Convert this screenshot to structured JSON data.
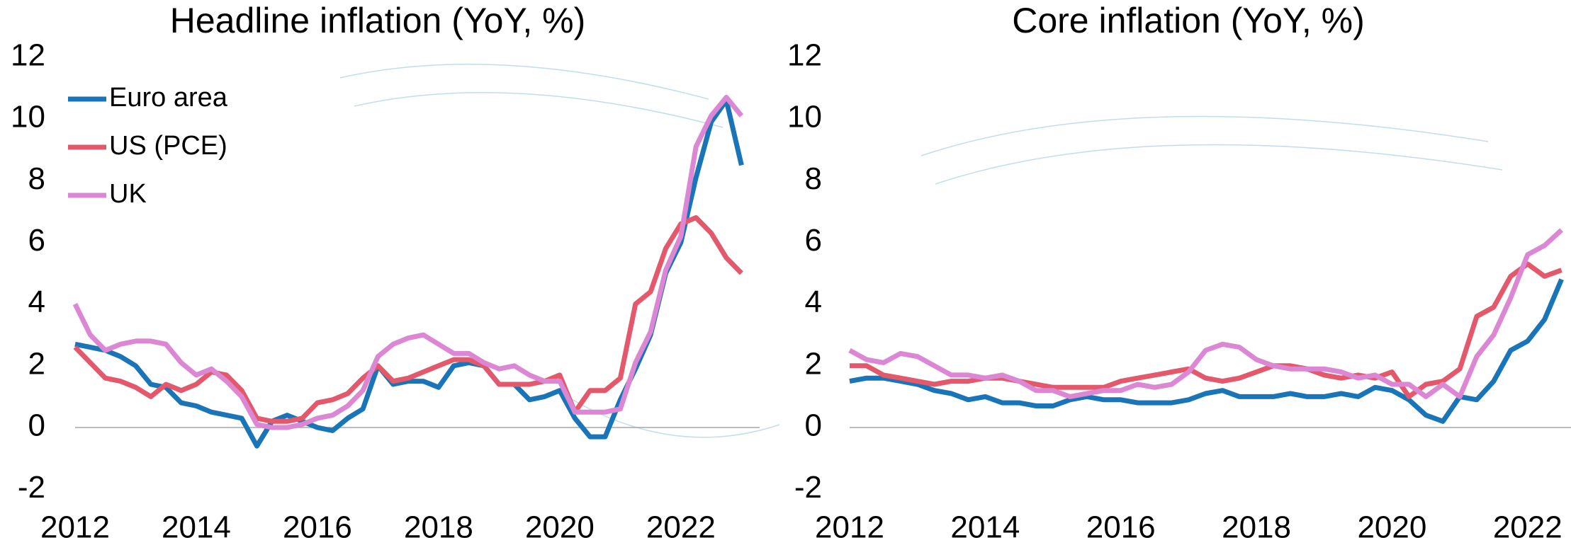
{
  "chart_data": [
    {
      "type": "line",
      "title": "Headline inflation (YoY, %)",
      "x": [
        2012,
        2012.25,
        2012.5,
        2012.75,
        2013,
        2013.25,
        2013.5,
        2013.75,
        2014,
        2014.25,
        2014.5,
        2014.75,
        2015,
        2015.25,
        2015.5,
        2015.75,
        2016,
        2016.25,
        2016.5,
        2016.75,
        2017,
        2017.25,
        2017.5,
        2017.75,
        2018,
        2018.25,
        2018.5,
        2018.75,
        2019,
        2019.25,
        2019.5,
        2019.75,
        2020,
        2020.25,
        2020.5,
        2020.75,
        2021,
        2021.25,
        2021.5,
        2021.75,
        2022,
        2022.25,
        2022.5,
        2022.75,
        2023
      ],
      "series": [
        {
          "name": "Euro area",
          "color": "#1a75b8",
          "values": [
            2.7,
            2.6,
            2.5,
            2.3,
            2.0,
            1.4,
            1.3,
            0.8,
            0.7,
            0.5,
            0.4,
            0.3,
            -0.6,
            0.2,
            0.4,
            0.2,
            0.0,
            -0.1,
            0.3,
            0.6,
            2.0,
            1.4,
            1.5,
            1.5,
            1.3,
            2.0,
            2.1,
            2.0,
            1.4,
            1.4,
            0.9,
            1.0,
            1.2,
            0.3,
            -0.3,
            -0.3,
            0.9,
            1.9,
            3.0,
            5.0,
            6.0,
            8.1,
            9.9,
            10.6,
            8.5
          ]
        },
        {
          "name": "US (PCE)",
          "color": "#e3596b",
          "values": [
            2.6,
            2.1,
            1.6,
            1.5,
            1.3,
            1.0,
            1.4,
            1.2,
            1.4,
            1.8,
            1.7,
            1.2,
            0.3,
            0.2,
            0.2,
            0.3,
            0.8,
            0.9,
            1.1,
            1.6,
            2.0,
            1.5,
            1.6,
            1.8,
            2.0,
            2.2,
            2.2,
            2.0,
            1.4,
            1.4,
            1.4,
            1.5,
            1.7,
            0.5,
            1.2,
            1.2,
            1.6,
            4.0,
            4.4,
            5.8,
            6.6,
            6.8,
            6.3,
            5.5,
            5.0
          ]
        },
        {
          "name": "UK",
          "color": "#dc87d3",
          "values": [
            4.0,
            3.0,
            2.5,
            2.7,
            2.8,
            2.8,
            2.7,
            2.1,
            1.7,
            1.9,
            1.5,
            1.0,
            0.1,
            0.0,
            0.0,
            0.1,
            0.3,
            0.4,
            0.7,
            1.2,
            2.3,
            2.7,
            2.9,
            3.0,
            2.7,
            2.4,
            2.4,
            2.1,
            1.9,
            2.0,
            1.7,
            1.5,
            1.5,
            0.5,
            0.5,
            0.5,
            0.6,
            2.1,
            3.1,
            5.1,
            6.2,
            9.1,
            10.1,
            10.7,
            10.1
          ]
        }
      ],
      "xlim": [
        2012,
        2023.3
      ],
      "xticks": [
        2012,
        2014,
        2016,
        2018,
        2020,
        2022
      ],
      "ylim": [
        -2.5,
        12.5
      ],
      "yticks": [
        -2,
        0,
        2,
        4,
        6,
        8,
        10,
        12
      ],
      "legend": "upper left"
    },
    {
      "type": "line",
      "title": "Core inflation (YoY, %)",
      "x": [
        2012,
        2012.25,
        2012.5,
        2012.75,
        2013,
        2013.25,
        2013.5,
        2013.75,
        2014,
        2014.25,
        2014.5,
        2014.75,
        2015,
        2015.25,
        2015.5,
        2015.75,
        2016,
        2016.25,
        2016.5,
        2016.75,
        2017,
        2017.25,
        2017.5,
        2017.75,
        2018,
        2018.25,
        2018.5,
        2018.75,
        2019,
        2019.25,
        2019.5,
        2019.75,
        2020,
        2020.25,
        2020.5,
        2020.75,
        2021,
        2021.25,
        2021.5,
        2021.75,
        2022,
        2022.25,
        2022.5
      ],
      "series": [
        {
          "color": "#1a75b8",
          "values": [
            1.5,
            1.6,
            1.6,
            1.5,
            1.4,
            1.2,
            1.1,
            0.9,
            1.0,
            0.8,
            0.8,
            0.7,
            0.7,
            0.9,
            1.0,
            0.9,
            0.9,
            0.8,
            0.8,
            0.8,
            0.9,
            1.1,
            1.2,
            1.0,
            1.0,
            1.0,
            1.1,
            1.0,
            1.0,
            1.1,
            1.0,
            1.3,
            1.2,
            0.9,
            0.4,
            0.2,
            1.0,
            0.9,
            1.5,
            2.5,
            2.8,
            3.5,
            4.8
          ]
        },
        {
          "color": "#e3596b",
          "values": [
            2.0,
            2.0,
            1.7,
            1.6,
            1.5,
            1.4,
            1.5,
            1.5,
            1.6,
            1.6,
            1.5,
            1.4,
            1.3,
            1.3,
            1.3,
            1.3,
            1.5,
            1.6,
            1.7,
            1.8,
            1.9,
            1.6,
            1.5,
            1.6,
            1.8,
            2.0,
            2.0,
            1.9,
            1.7,
            1.6,
            1.7,
            1.6,
            1.8,
            1.0,
            1.4,
            1.5,
            1.9,
            3.6,
            3.9,
            4.9,
            5.3,
            4.9,
            5.1
          ]
        },
        {
          "color": "#dc87d3",
          "values": [
            2.5,
            2.2,
            2.1,
            2.4,
            2.3,
            2.0,
            1.7,
            1.7,
            1.6,
            1.7,
            1.5,
            1.2,
            1.2,
            1.0,
            1.1,
            1.2,
            1.2,
            1.4,
            1.3,
            1.4,
            1.8,
            2.5,
            2.7,
            2.6,
            2.2,
            2.0,
            1.9,
            1.9,
            1.9,
            1.8,
            1.6,
            1.7,
            1.4,
            1.4,
            1.0,
            1.4,
            1.0,
            2.3,
            3.0,
            4.2,
            5.6,
            5.9,
            6.4
          ]
        }
      ],
      "xlim": [
        2012,
        2022.64
      ],
      "xticks": [
        2012,
        2014,
        2016,
        2018,
        2020,
        2022
      ],
      "ylim": [
        -2.5,
        12.5
      ],
      "yticks": [
        -2,
        0,
        2,
        4,
        6,
        8,
        10,
        12
      ]
    }
  ]
}
